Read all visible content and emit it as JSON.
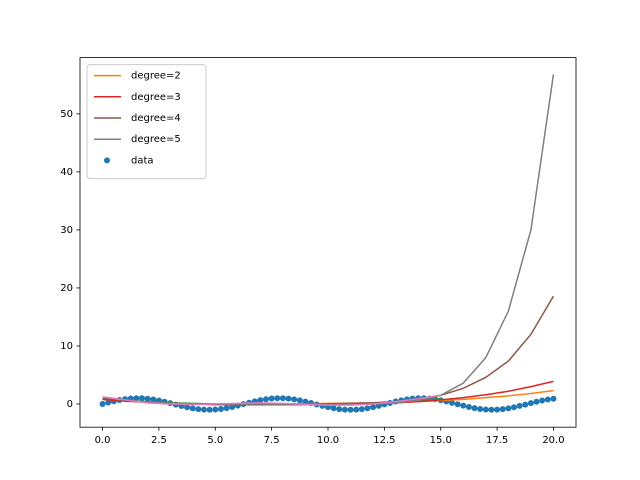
{
  "chart_data": {
    "type": "line",
    "x": [
      0,
      1,
      2,
      3,
      4,
      5,
      6,
      7,
      8,
      9,
      10,
      11,
      12,
      13,
      14,
      15,
      16,
      17,
      18,
      19,
      20
    ],
    "xlim": [
      -1,
      21
    ],
    "ylim": [
      -4,
      59.7
    ],
    "xticks": [
      {
        "value": 0,
        "label": "0.0"
      },
      2.5,
      {
        "value": 5,
        "label": "5.0"
      },
      7.5,
      {
        "value": 10,
        "label": "10.0"
      },
      12.5,
      {
        "value": 15,
        "label": "15.0"
      },
      17.5,
      {
        "value": 20,
        "label": "20.0"
      }
    ],
    "yticks": [
      0,
      10,
      20,
      30,
      40,
      50
    ],
    "legend": "upper left",
    "series": [
      {
        "type": "scatter",
        "name": "data",
        "color": "#1f77b4",
        "x": [
          0,
          0.25,
          0.5,
          0.75,
          1,
          1.25,
          1.5,
          1.75,
          2,
          2.25,
          2.5,
          2.75,
          3,
          3.25,
          3.5,
          3.75,
          4,
          4.25,
          4.5,
          4.75,
          5,
          5.25,
          5.5,
          5.75,
          6,
          6.25,
          6.5,
          6.75,
          7,
          7.25,
          7.5,
          7.75,
          8,
          8.25,
          8.5,
          8.75,
          9,
          9.25,
          9.5,
          9.75,
          10,
          10.25,
          10.5,
          10.75,
          11,
          11.25,
          11.5,
          11.75,
          12,
          12.25,
          12.5,
          12.75,
          13,
          13.25,
          13.5,
          13.75,
          14,
          14.25,
          14.5,
          14.75,
          15,
          15.25,
          15.5,
          15.75,
          16,
          16.25,
          16.5,
          16.75,
          17,
          17.25,
          17.5,
          17.75,
          18,
          18.25,
          18.5,
          18.75,
          19,
          19.25,
          19.5,
          19.75,
          20
        ],
        "values": [
          0,
          0.25,
          0.48,
          0.68,
          0.84,
          0.95,
          1.0,
          0.98,
          0.91,
          0.78,
          0.6,
          0.38,
          0.14,
          -0.11,
          -0.35,
          -0.57,
          -0.76,
          -0.89,
          -0.98,
          -1.0,
          -0.96,
          -0.86,
          -0.71,
          -0.51,
          -0.28,
          -0.03,
          0.22,
          0.45,
          0.66,
          0.82,
          0.94,
          0.99,
          0.99,
          0.92,
          0.8,
          0.62,
          0.41,
          0.17,
          -0.08,
          -0.32,
          -0.54,
          -0.73,
          -0.88,
          -0.97,
          -1.0,
          -0.97,
          -0.88,
          -0.73,
          -0.54,
          -0.33,
          -0.07,
          0.17,
          0.42,
          0.63,
          0.8,
          0.92,
          0.99,
          0.99,
          0.93,
          0.81,
          0.65,
          0.44,
          0.2,
          -0.04,
          -0.29,
          -0.51,
          -0.71,
          -0.87,
          -0.96,
          -1.0,
          -0.98,
          -0.89,
          -0.75,
          -0.56,
          -0.33,
          -0.1,
          0.15,
          0.39,
          0.6,
          0.78,
          0.91
        ]
      },
      {
        "name": "degree=2",
        "color": "#ff7f0e",
        "values": [
          1.0,
          0.6,
          0.3,
          0.1,
          0,
          -0.05,
          -0.05,
          -0.05,
          0,
          0.05,
          0.1,
          0.15,
          0.2,
          0.3,
          0.4,
          0.6,
          0.8,
          1.1,
          1.4,
          1.8,
          2.3
        ]
      },
      {
        "color": "#2ca02c",
        "values": [
          0.8,
          0.6,
          0.4,
          0.2,
          0.1,
          0,
          -0.1,
          -0.1,
          -0.1,
          -0.1,
          0,
          0.1,
          0.2,
          0.4,
          0.6,
          0.9,
          null,
          null,
          null,
          null,
          null
        ]
      },
      {
        "name": "degree=3",
        "color": "#d62728",
        "values": [
          0.8,
          0.5,
          0.3,
          0.1,
          0,
          -0.1,
          -0.1,
          -0.1,
          -0.1,
          -0.1,
          0,
          0,
          0.1,
          0.2,
          0.4,
          0.7,
          1.1,
          1.6,
          2.2,
          3.0,
          3.9
        ]
      },
      {
        "name": "degree=4",
        "color": "#8c564b",
        "values": [
          1.0,
          0.6,
          0.3,
          0.1,
          0,
          -0.1,
          -0.1,
          -0.1,
          -0.1,
          0,
          0,
          0.1,
          0.2,
          0.4,
          0.8,
          1.5,
          2.7,
          4.6,
          7.4,
          12.0,
          18.6
        ]
      },
      {
        "name": "degree=5",
        "color": "#7f7f7f",
        "values": [
          1.2,
          0.7,
          0.3,
          0.1,
          0,
          0,
          0,
          0,
          0,
          0,
          -0.1,
          -0.1,
          0,
          0.2,
          0.6,
          1.5,
          3.6,
          8.0,
          16.0,
          30.0,
          56.8
        ]
      },
      {
        "color": "#e377c2",
        "values": [
          1.2,
          0.7,
          0.2,
          0,
          -0.1,
          0,
          0.1,
          0.2,
          0.1,
          -0.1,
          -0.2,
          -0.2,
          0,
          0.4,
          0.9,
          1.5,
          null,
          null,
          null,
          null,
          null
        ]
      }
    ]
  }
}
